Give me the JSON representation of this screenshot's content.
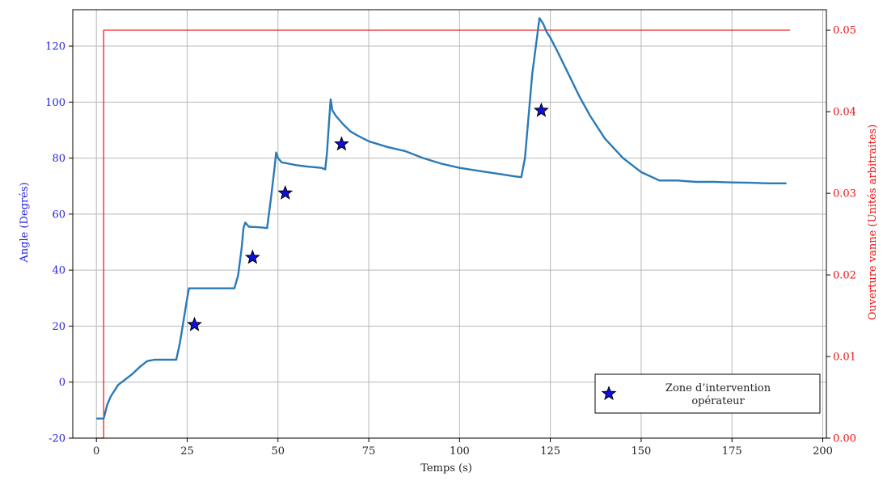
{
  "chart_data": {
    "type": "line",
    "xlabel": "Temps (s)",
    "ylabel_left": "Angle (Degrés)",
    "ylabel_right": "Ouverture vanne (Unités arbitraites)",
    "xlim": [
      -6.5,
      201
    ],
    "ylim_left": [
      -20,
      133
    ],
    "ylim_right": [
      0,
      0.0525
    ],
    "x_ticks": [
      "0",
      "25",
      "50",
      "75",
      "100",
      "125",
      "150",
      "175",
      "200"
    ],
    "y_left_ticks": [
      "-20",
      "0",
      "20",
      "40",
      "60",
      "80",
      "100",
      "120"
    ],
    "y_right_ticks": [
      "0.00",
      "0.01",
      "0.02",
      "0.03",
      "0.04",
      "0.05"
    ],
    "grid": true,
    "legend_position": "bottom-right",
    "colors": {
      "angle": "#2a7ab5",
      "valve": "#ee1111",
      "stars": "#1010dd",
      "left_axis": "#2222dd",
      "right_axis": "#ee1111"
    },
    "series": [
      {
        "name": "",
        "axis": "left",
        "x": [
          0,
          2,
          3,
          4,
          5,
          6,
          8,
          10,
          12,
          14,
          16,
          18,
          20,
          22,
          23,
          24,
          25,
          25.5,
          30,
          35,
          38,
          39,
          40,
          40.5,
          41,
          42,
          45,
          47,
          48,
          49,
          49.5,
          50,
          51,
          53,
          55,
          58,
          62,
          63,
          63.5,
          64,
          64.5,
          65,
          66,
          68,
          70,
          72,
          75,
          80,
          85,
          90,
          95,
          100,
          105,
          110,
          115,
          117,
          118,
          119,
          120,
          121,
          122,
          123,
          124,
          125,
          127,
          130,
          133,
          136,
          140,
          145,
          150,
          155,
          160,
          165,
          170,
          175,
          180,
          185,
          190
        ],
        "y": [
          -13,
          -13,
          -8,
          -5,
          -3,
          -1,
          1,
          3,
          5.5,
          7.5,
          8,
          8,
          8,
          8,
          14,
          22,
          30,
          33.5,
          33.5,
          33.5,
          33.5,
          38,
          48,
          55,
          57,
          55.5,
          55.3,
          55,
          65,
          76,
          82,
          80,
          78.5,
          78,
          77.5,
          77,
          76.5,
          76,
          82,
          92,
          101,
          97,
          95,
          92,
          89.5,
          88,
          86,
          84,
          82.5,
          80,
          78,
          76.5,
          75.5,
          74.5,
          73.5,
          73.2,
          80,
          95,
          110,
          120,
          130,
          128,
          125,
          123,
          118,
          110,
          102,
          95,
          87,
          80,
          75,
          72,
          72,
          71.5,
          71.5,
          71.3,
          71.2,
          71,
          71
        ]
      },
      {
        "name": "",
        "axis": "right",
        "x": [
          0,
          2,
          2,
          191
        ],
        "y": [
          0,
          0,
          0.05,
          0.05
        ]
      }
    ],
    "markers": {
      "name": "Zone d’intervention opérateur",
      "shape": "star",
      "x": [
        27,
        43,
        52,
        67.5,
        122.5
      ],
      "y": [
        20.5,
        44.5,
        67.5,
        85,
        97
      ]
    },
    "legend": {
      "line1": "Zone d’intervention",
      "line2": "opérateur"
    }
  }
}
